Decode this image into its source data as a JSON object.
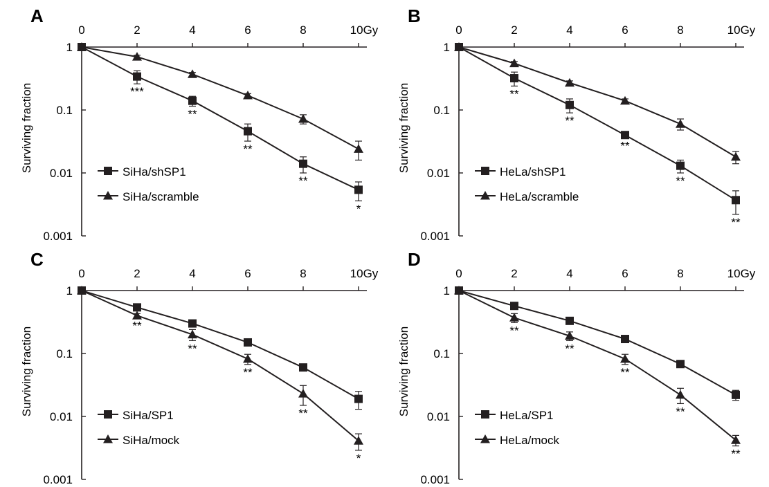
{
  "chart_data": [
    {
      "panel": "A",
      "type": "line",
      "x_tick_labels": [
        "0",
        "2",
        "4",
        "6",
        "8",
        "10Gy"
      ],
      "x": [
        0,
        2,
        4,
        6,
        8,
        10
      ],
      "xlim": [
        0,
        10
      ],
      "ylabel": "Surviving fraction",
      "y_scale": "log",
      "ylim": [
        0.001,
        1
      ],
      "y_tick_labels": [
        "1",
        "0.1",
        "0.01",
        "0.001"
      ],
      "y_ticks": [
        1,
        0.1,
        0.01,
        0.001
      ],
      "x_axis_position": "top",
      "legend_position": "lower-left",
      "series": [
        {
          "name": "SiHa/shSP1",
          "marker": "square",
          "values": [
            1,
            0.34,
            0.14,
            0.046,
            0.014,
            0.0054
          ],
          "error": [
            0,
            0.08,
            0.025,
            0.014,
            0.004,
            0.0018
          ]
        },
        {
          "name": "SiHa/scramble",
          "marker": "triangle",
          "values": [
            1,
            0.7,
            0.37,
            0.17,
            0.072,
            0.024
          ],
          "error": [
            0,
            0.04,
            0.025,
            0.012,
            0.012,
            0.008
          ]
        }
      ],
      "annotations": [
        {
          "x": 2,
          "label": "***"
        },
        {
          "x": 4,
          "label": "**"
        },
        {
          "x": 6,
          "label": "**"
        },
        {
          "x": 8,
          "label": "**"
        },
        {
          "x": 10,
          "label": "*"
        }
      ]
    },
    {
      "panel": "B",
      "type": "line",
      "x_tick_labels": [
        "0",
        "2",
        "4",
        "6",
        "8",
        "10Gy"
      ],
      "x": [
        0,
        2,
        4,
        6,
        8,
        10
      ],
      "xlim": [
        0,
        10
      ],
      "ylabel": "Surviving fraction",
      "y_scale": "log",
      "ylim": [
        0.001,
        1
      ],
      "y_tick_labels": [
        "1",
        "0.1",
        "0.01",
        "0.001"
      ],
      "y_ticks": [
        1,
        0.1,
        0.01,
        0.001
      ],
      "x_axis_position": "top",
      "legend_position": "lower-left",
      "series": [
        {
          "name": "HeLa/shSP1",
          "marker": "square",
          "values": [
            1,
            0.32,
            0.12,
            0.04,
            0.013,
            0.0037
          ],
          "error": [
            0,
            0.08,
            0.03,
            0.004,
            0.003,
            0.0015
          ]
        },
        {
          "name": "HeLa/scramble",
          "marker": "triangle",
          "values": [
            1,
            0.55,
            0.27,
            0.14,
            0.06,
            0.018
          ],
          "error": [
            0,
            0.04,
            0.02,
            0.01,
            0.012,
            0.004
          ]
        }
      ],
      "annotations": [
        {
          "x": 2,
          "label": "**"
        },
        {
          "x": 4,
          "label": "**"
        },
        {
          "x": 6,
          "label": "**"
        },
        {
          "x": 8,
          "label": "**"
        },
        {
          "x": 10,
          "label": "**"
        }
      ]
    },
    {
      "panel": "C",
      "type": "line",
      "x_tick_labels": [
        "0",
        "2",
        "4",
        "6",
        "8",
        "10Gy"
      ],
      "x": [
        0,
        2,
        4,
        6,
        8,
        10
      ],
      "xlim": [
        0,
        10
      ],
      "ylabel": "Surviving fraction",
      "y_scale": "log",
      "ylim": [
        0.001,
        1
      ],
      "y_tick_labels": [
        "1",
        "0.1",
        "0.01",
        "0.001"
      ],
      "y_ticks": [
        1,
        0.1,
        0.01,
        0.001
      ],
      "x_axis_position": "top",
      "legend_position": "lower-left",
      "series": [
        {
          "name": "SiHa/SP1",
          "marker": "square",
          "values": [
            1,
            0.54,
            0.3,
            0.15,
            0.06,
            0.019
          ],
          "error": [
            0,
            0.04,
            0.03,
            0.01,
            0.005,
            0.006
          ]
        },
        {
          "name": "SiHa/mock",
          "marker": "triangle",
          "values": [
            1,
            0.4,
            0.2,
            0.082,
            0.023,
            0.0041
          ],
          "error": [
            0,
            0.03,
            0.04,
            0.015,
            0.008,
            0.0012
          ]
        }
      ],
      "annotations": [
        {
          "x": 2,
          "label": "**"
        },
        {
          "x": 4,
          "label": "**"
        },
        {
          "x": 6,
          "label": "**"
        },
        {
          "x": 8,
          "label": "**"
        },
        {
          "x": 10,
          "label": "*"
        }
      ]
    },
    {
      "panel": "D",
      "type": "line",
      "x_tick_labels": [
        "0",
        "2",
        "4",
        "6",
        "8",
        "10Gy"
      ],
      "x": [
        0,
        2,
        4,
        6,
        8,
        10
      ],
      "xlim": [
        0,
        10
      ],
      "ylabel": "Surviving fraction",
      "y_scale": "log",
      "ylim": [
        0.001,
        1
      ],
      "y_tick_labels": [
        "1",
        "0.1",
        "0.01",
        "0.001"
      ],
      "y_ticks": [
        1,
        0.1,
        0.01,
        0.001
      ],
      "x_axis_position": "top",
      "legend_position": "lower-left",
      "series": [
        {
          "name": "HeLa/SP1",
          "marker": "square",
          "values": [
            1,
            0.57,
            0.33,
            0.17,
            0.068,
            0.022
          ],
          "error": [
            0,
            0.03,
            0.02,
            0.01,
            0.005,
            0.004
          ]
        },
        {
          "name": "HeLa/mock",
          "marker": "triangle",
          "values": [
            1,
            0.37,
            0.19,
            0.082,
            0.022,
            0.0042
          ],
          "error": [
            0,
            0.06,
            0.03,
            0.015,
            0.006,
            0.0008
          ]
        }
      ],
      "annotations": [
        {
          "x": 2,
          "label": "**"
        },
        {
          "x": 4,
          "label": "**"
        },
        {
          "x": 6,
          "label": "**"
        },
        {
          "x": 8,
          "label": "**"
        },
        {
          "x": 10,
          "label": "**"
        }
      ]
    }
  ],
  "colors": {
    "ink": "#231f20",
    "background": "#ffffff"
  }
}
